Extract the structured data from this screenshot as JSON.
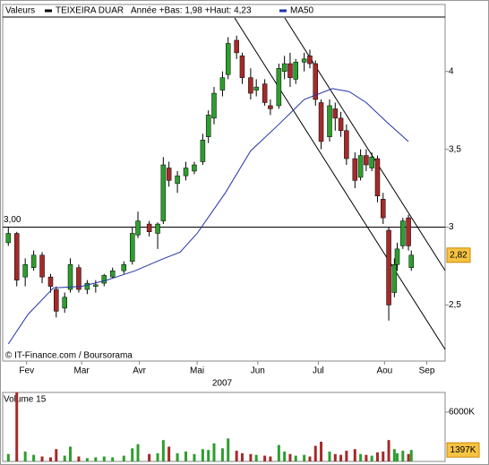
{
  "chart_data": [
    {
      "type": "candlestick",
      "label": "Valeurs",
      "subtitle": "Année +Bas: 1,98 +Haut: 4,23",
      "credit": "© IT-Finance.com / Boursorama",
      "year": "2007",
      "up_color": "#2e9e2e",
      "down_color": "#a52a2a",
      "xlim": [
        0,
        157
      ],
      "xticks": [
        {
          "value": 8.5,
          "label": "Fev"
        },
        {
          "value": 28,
          "label": "Mar"
        },
        {
          "value": 48.5,
          "label": "Avr"
        },
        {
          "value": 69,
          "label": "Mai"
        },
        {
          "value": 90.5,
          "label": "Jun"
        },
        {
          "value": 112,
          "label": "Jul"
        },
        {
          "value": 135.5,
          "label": "Aou"
        },
        {
          "value": 150.5,
          "label": "Sep"
        }
      ],
      "ylim": [
        2.14,
        4.43
      ],
      "yticks": [
        {
          "value": 2.5,
          "label": "2,5"
        },
        {
          "value": 3,
          "label": "3"
        },
        {
          "value": 3.5,
          "label": "3,5"
        },
        {
          "value": 4,
          "label": "4"
        }
      ],
      "reference": {
        "value": 3,
        "label": "3,00"
      },
      "last_price": {
        "value": 2.82,
        "label": "2,82"
      },
      "series": [
        {
          "name": "TEIXEIRA DUAR",
          "color": "#000000",
          "x": [
            2,
            5,
            8,
            11,
            14,
            17,
            19,
            22,
            24,
            27,
            30,
            33,
            36,
            39,
            43,
            46,
            48,
            52,
            55,
            57,
            59,
            62,
            65,
            68,
            71,
            73,
            75,
            78,
            80,
            83,
            85,
            88,
            90,
            93,
            95,
            98,
            100,
            102,
            104,
            107,
            109,
            111,
            113,
            116,
            118,
            120,
            122,
            125,
            127,
            129,
            131,
            133,
            135,
            137,
            139,
            140,
            142,
            144,
            145
          ],
          "open": [
            2.9,
            2.96,
            2.68,
            2.74,
            2.82,
            2.68,
            2.6,
            2.48,
            2.6,
            2.74,
            2.6,
            2.62,
            2.64,
            2.68,
            2.72,
            2.78,
            2.95,
            3.02,
            2.96,
            3.04,
            3.38,
            3.28,
            3.33,
            3.36,
            3.42,
            3.58,
            3.7,
            3.88,
            3.98,
            4.2,
            4.1,
            3.96,
            3.88,
            3.92,
            3.78,
            3.78,
            4.0,
            4.05,
            3.95,
            4.06,
            4.1,
            4.05,
            3.8,
            3.58,
            3.76,
            3.7,
            3.62,
            3.44,
            3.32,
            3.46,
            3.38,
            3.44,
            3.18,
            2.98,
            2.58,
            2.76,
            2.88,
            3.06,
            2.74
          ],
          "high": [
            3.0,
            2.97,
            2.8,
            2.85,
            2.84,
            2.7,
            2.62,
            2.58,
            2.8,
            2.76,
            2.66,
            2.66,
            2.7,
            2.74,
            2.78,
            3.0,
            3.1,
            3.04,
            3.03,
            3.45,
            3.42,
            3.36,
            3.42,
            3.42,
            3.6,
            3.75,
            3.9,
            4.0,
            4.22,
            4.23,
            4.12,
            4.02,
            3.95,
            3.95,
            3.82,
            4.05,
            4.1,
            4.12,
            4.08,
            4.12,
            4.14,
            4.07,
            3.82,
            3.82,
            3.8,
            3.74,
            3.66,
            3.48,
            3.5,
            3.5,
            3.48,
            3.46,
            3.22,
            3.0,
            2.8,
            2.9,
            3.06,
            3.08,
            2.85
          ],
          "low": [
            2.88,
            2.62,
            2.62,
            2.72,
            2.64,
            2.58,
            2.42,
            2.45,
            2.58,
            2.58,
            2.57,
            2.58,
            2.62,
            2.67,
            2.7,
            2.76,
            2.93,
            2.94,
            2.86,
            3.02,
            3.26,
            3.22,
            3.3,
            3.34,
            3.4,
            3.54,
            3.66,
            3.84,
            3.95,
            4.08,
            3.92,
            3.82,
            3.84,
            3.78,
            3.72,
            3.76,
            3.95,
            3.9,
            3.92,
            4.0,
            4.02,
            3.78,
            3.5,
            3.55,
            3.62,
            3.58,
            3.4,
            3.25,
            3.3,
            3.36,
            3.36,
            3.16,
            3.02,
            2.4,
            2.55,
            2.72,
            2.86,
            2.85,
            2.72
          ],
          "close": [
            2.96,
            2.66,
            2.76,
            2.82,
            2.68,
            2.62,
            2.46,
            2.55,
            2.76,
            2.6,
            2.64,
            2.63,
            2.69,
            2.72,
            2.76,
            2.96,
            3.04,
            2.97,
            3.02,
            3.4,
            3.3,
            3.33,
            3.38,
            3.4,
            3.56,
            3.72,
            3.86,
            3.96,
            4.18,
            4.12,
            3.96,
            3.86,
            3.9,
            3.8,
            3.76,
            4.02,
            4.05,
            3.96,
            4.06,
            4.08,
            4.05,
            3.82,
            3.55,
            3.78,
            3.7,
            3.62,
            3.44,
            3.3,
            3.46,
            3.4,
            3.45,
            3.2,
            3.06,
            2.5,
            2.76,
            2.86,
            3.04,
            2.88,
            2.82
          ]
        },
        {
          "name": "MA50",
          "color": "#2233aa",
          "x": [
            2,
            9,
            18,
            28,
            37,
            47,
            56,
            63,
            69,
            79,
            88,
            98,
            107,
            117,
            123,
            129,
            136,
            144
          ],
          "values": [
            2.25,
            2.44,
            2.61,
            2.62,
            2.66,
            2.72,
            2.79,
            2.84,
            2.96,
            3.22,
            3.49,
            3.66,
            3.82,
            3.89,
            3.87,
            3.8,
            3.68,
            3.55
          ]
        }
      ]
    },
    {
      "type": "bar",
      "title": "Volume 15",
      "ylim": [
        0,
        8400
      ],
      "yticks": [
        {
          "value": 6000,
          "label": "6000K"
        }
      ],
      "last_value": {
        "value": 1397,
        "label": "1397K"
      },
      "values": [
        900,
        8400,
        1200,
        800,
        600,
        500,
        1500,
        700,
        1800,
        600,
        400,
        500,
        600,
        500,
        700,
        1600,
        2100,
        900,
        1000,
        2600,
        1800,
        1000,
        1200,
        900,
        1500,
        1400,
        2200,
        1600,
        2800,
        1300,
        1000,
        900,
        800,
        700,
        600,
        2000,
        1200,
        900,
        700,
        800,
        600,
        1900,
        2400,
        1200,
        900,
        800,
        1300,
        1500,
        900,
        800,
        700,
        1100,
        1200,
        2600,
        1500,
        1000,
        1300,
        900,
        1397
      ]
    }
  ]
}
